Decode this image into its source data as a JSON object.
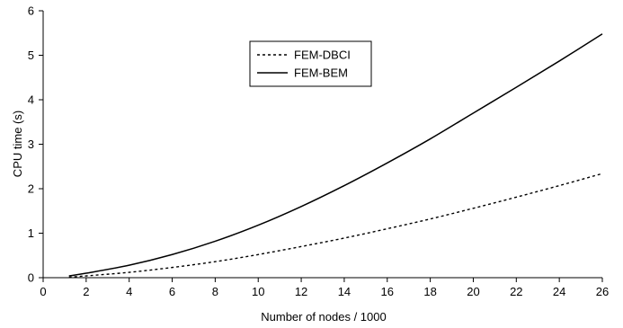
{
  "chart_data": {
    "type": "line",
    "title": "",
    "xlabel": "Number of nodes / 1000",
    "ylabel": "CPU time (s)",
    "xlim": [
      0,
      26
    ],
    "ylim": [
      0,
      6
    ],
    "xticks": [
      0,
      2,
      4,
      6,
      8,
      10,
      12,
      14,
      16,
      18,
      20,
      22,
      24,
      26
    ],
    "yticks": [
      0,
      1,
      2,
      3,
      4,
      5,
      6
    ],
    "grid": false,
    "legend_position": "top-center",
    "series": [
      {
        "name": "FEM-DBCI",
        "style": "dotted",
        "color": "#000000",
        "x": [
          1.2,
          2,
          4,
          6,
          8,
          10,
          12,
          14,
          16,
          18,
          20,
          22,
          24,
          26
        ],
        "y": [
          0.01,
          0.04,
          0.12,
          0.23,
          0.36,
          0.52,
          0.7,
          0.89,
          1.1,
          1.32,
          1.56,
          1.81,
          2.07,
          2.34
        ]
      },
      {
        "name": "FEM-BEM",
        "style": "solid",
        "color": "#000000",
        "x": [
          1.2,
          2,
          4,
          6,
          8,
          10,
          12,
          14,
          16,
          18,
          20,
          22,
          24,
          26
        ],
        "y": [
          0.04,
          0.1,
          0.28,
          0.52,
          0.82,
          1.18,
          1.6,
          2.07,
          2.58,
          3.12,
          3.7,
          4.28,
          4.87,
          5.48
        ]
      }
    ]
  }
}
